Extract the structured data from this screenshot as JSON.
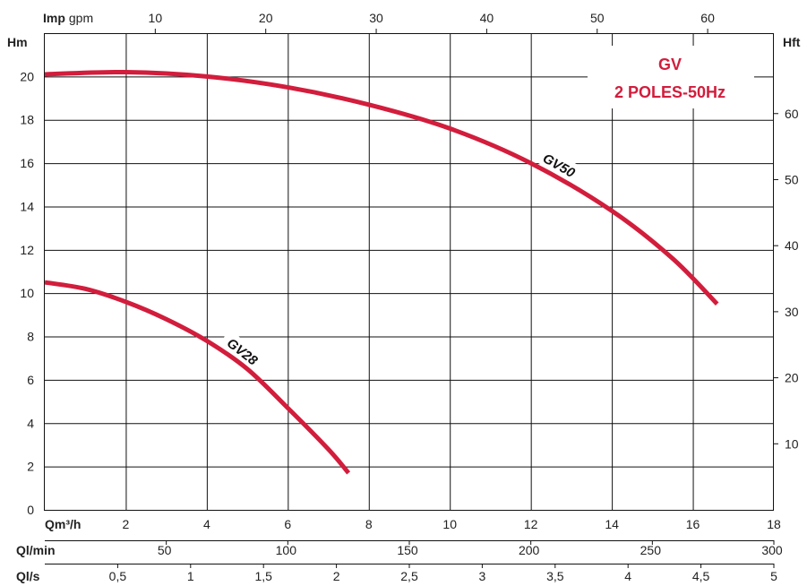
{
  "chart_data": {
    "type": "line",
    "title_lines": [
      "GV",
      "2 POLES-50Hz"
    ],
    "title_color": "#d21d3c",
    "curve_color": "#d21d3c",
    "grid": true,
    "left_axis": {
      "label": "Hm",
      "range": [
        0,
        22
      ],
      "ticks": [
        0,
        2,
        4,
        6,
        8,
        10,
        12,
        14,
        16,
        18,
        20
      ]
    },
    "right_axis": {
      "label": "Hft",
      "ticks": [
        "10",
        "20",
        "30",
        "40",
        "50",
        "60"
      ]
    },
    "top_axis": {
      "label_bold": "Imp",
      "label_unit": "gpm",
      "ticks": [
        "10",
        "20",
        "30",
        "40",
        "50",
        "60"
      ]
    },
    "bottom_axes": [
      {
        "id": "qm3h",
        "label": "Qm³/h",
        "range": [
          0,
          18
        ],
        "ticks": [
          "2",
          "4",
          "6",
          "8",
          "10",
          "12",
          "14",
          "16",
          "18"
        ]
      },
      {
        "id": "qlmin",
        "label": "Ql/min",
        "ticks": [
          "50",
          "100",
          "150",
          "200",
          "250",
          "300"
        ]
      },
      {
        "id": "qls",
        "label": "Ql/s",
        "ticks": [
          "0,5",
          "1",
          "1,5",
          "2",
          "2,5",
          "3",
          "3,5",
          "4",
          "4,5",
          "5"
        ]
      }
    ],
    "x_unit": "m3/h",
    "y_unit": "m",
    "series": [
      {
        "name": "GV28",
        "points": [
          [
            0,
            10.5
          ],
          [
            1,
            10.2
          ],
          [
            2,
            9.6
          ],
          [
            3,
            8.8
          ],
          [
            4,
            7.8
          ],
          [
            5,
            6.5
          ],
          [
            6,
            4.7
          ],
          [
            7,
            2.8
          ],
          [
            7.5,
            1.7
          ]
        ]
      },
      {
        "name": "GV50",
        "points": [
          [
            0,
            20.1
          ],
          [
            2,
            20.2
          ],
          [
            4,
            20.0
          ],
          [
            6,
            19.5
          ],
          [
            8,
            18.7
          ],
          [
            10,
            17.6
          ],
          [
            12,
            16.0
          ],
          [
            14,
            13.8
          ],
          [
            15.5,
            11.6
          ],
          [
            16.6,
            9.5
          ]
        ]
      }
    ]
  }
}
